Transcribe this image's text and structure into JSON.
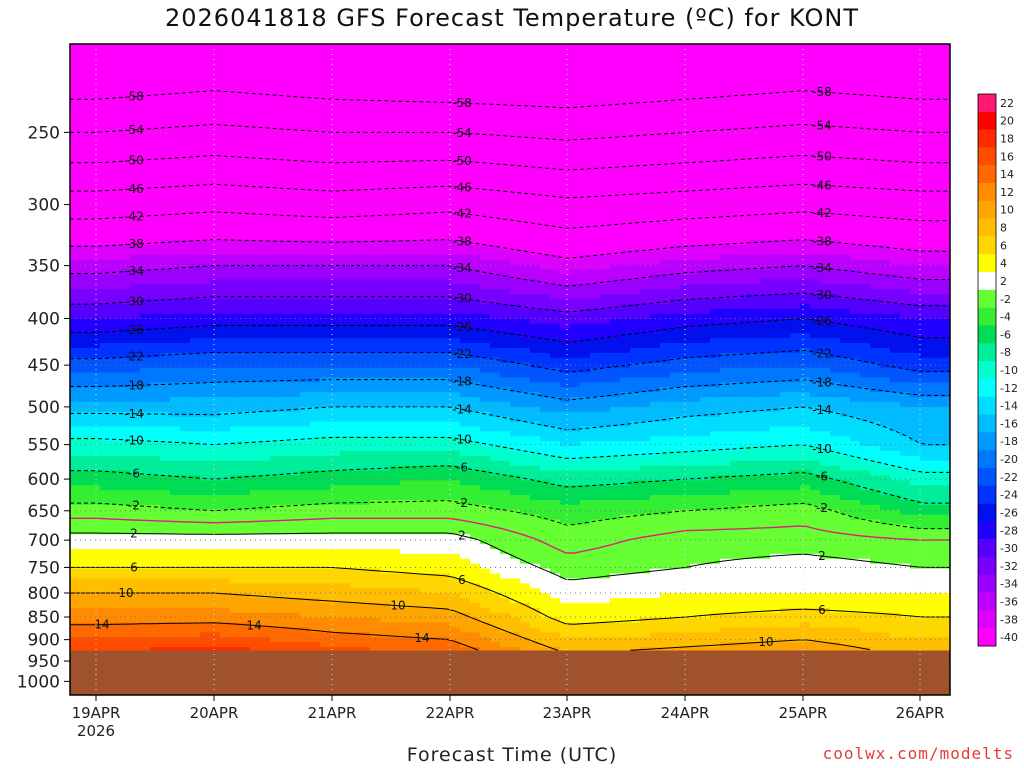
{
  "title": "2026041818 GFS Forecast Temperature (ºC) for KONT",
  "xlabel": "Forecast Time (UTC)",
  "credit": "coolwx.com/modelts",
  "chart_data": {
    "type": "heatmap",
    "title": "2026041818 GFS Forecast Temperature (ºC) for KONT",
    "xlabel": "Forecast Time (UTC)",
    "ylabel": "",
    "y_axis": {
      "ticks": [
        250,
        300,
        350,
        400,
        450,
        500,
        550,
        600,
        650,
        700,
        750,
        800,
        850,
        900,
        950,
        1000
      ],
      "ylim": [
        1000,
        200
      ],
      "scale": "log"
    },
    "x_axis": {
      "ticks": [
        "19APR",
        "20APR",
        "21APR",
        "22APR",
        "23APR",
        "24APR",
        "25APR",
        "26APR"
      ],
      "year_label": "2026"
    },
    "colorbar": {
      "levels": [
        22,
        20,
        18,
        16,
        14,
        12,
        10,
        8,
        6,
        4,
        2,
        -2,
        -4,
        -6,
        -8,
        -10,
        -12,
        -14,
        -16,
        -18,
        -20,
        -22,
        -24,
        -26,
        -28,
        -30,
        -32,
        -34,
        -36,
        -38,
        -40
      ],
      "colors": [
        "#ff1a75",
        "#ff0000",
        "#ff2a00",
        "#ff4d00",
        "#ff6a00",
        "#ff8c00",
        "#ffa500",
        "#ffbf00",
        "#ffd700",
        "#ffff00",
        "#ffffff",
        "#66ff33",
        "#33ee33",
        "#00dd55",
        "#00ee99",
        "#00ffcc",
        "#00ffff",
        "#00ddff",
        "#00bbff",
        "#0099ff",
        "#0077ff",
        "#0055ff",
        "#0033ff",
        "#0011ee",
        "#2200ff",
        "#5500ff",
        "#7700ff",
        "#9900ff",
        "#bb00ff",
        "#dd00ff",
        "#ff00ff"
      ]
    },
    "contour_labels": [
      "-58",
      "-54",
      "-50",
      "-46",
      "-42",
      "-38",
      "-34",
      "-30",
      "-26",
      "-22",
      "-18",
      "-14",
      "-10",
      "-6",
      "-2",
      "2",
      "6",
      "10",
      "14"
    ],
    "freezing_line_color": "#e0207a",
    "ground_fill_color": "#a0522d",
    "surface_pressure_hpa": 925,
    "series": [
      {
        "pressure": 250,
        "values": [
          -54,
          -53,
          -54,
          -54,
          -55,
          -54,
          -53,
          -54
        ]
      },
      {
        "pressure": 300,
        "values": [
          -44,
          -43,
          -44,
          -43,
          -45,
          -44,
          -43,
          -44
        ]
      },
      {
        "pressure": 350,
        "values": [
          -35,
          -34,
          -34,
          -34,
          -37,
          -35,
          -34,
          -36
        ]
      },
      {
        "pressure": 400,
        "values": [
          -28,
          -27,
          -27,
          -27,
          -29,
          -27,
          -26,
          -28
        ]
      },
      {
        "pressure": 450,
        "values": [
          -21,
          -20,
          -20,
          -20,
          -23,
          -21,
          -20,
          -23
        ]
      },
      {
        "pressure": 500,
        "values": [
          -15,
          -15,
          -14,
          -14,
          -17,
          -15,
          -14,
          -16
        ]
      },
      {
        "pressure": 550,
        "values": [
          -9,
          -10,
          -9,
          -9,
          -12,
          -11,
          -10,
          -14
        ]
      },
      {
        "pressure": 600,
        "values": [
          -5,
          -6,
          -5,
          -4,
          -7,
          -6,
          -5,
          -9
        ]
      },
      {
        "pressure": 650,
        "values": [
          -1,
          -2,
          -1,
          -1,
          -3,
          -2,
          -1,
          -5
        ]
      },
      {
        "pressure": 700,
        "values": [
          3,
          3,
          3,
          3,
          -1,
          1,
          1,
          0
        ]
      },
      {
        "pressure": 750,
        "values": [
          6,
          6,
          6,
          5,
          1,
          2,
          3,
          2
        ]
      },
      {
        "pressure": 800,
        "values": [
          10,
          10,
          9,
          8,
          3,
          4,
          4,
          4
        ]
      },
      {
        "pressure": 850,
        "values": [
          13,
          13,
          12,
          11,
          5,
          6,
          7,
          6
        ]
      },
      {
        "pressure": 900,
        "values": [
          16,
          17,
          15,
          14,
          8,
          9,
          10,
          8
        ]
      }
    ]
  },
  "axes": {
    "y_ticks": [
      "250",
      "300",
      "350",
      "400",
      "450",
      "500",
      "550",
      "600",
      "650",
      "700",
      "750",
      "800",
      "850",
      "900",
      "950",
      "1000"
    ],
    "x_ticks": [
      "19APR",
      "20APR",
      "21APR",
      "22APR",
      "23APR",
      "24APR",
      "25APR",
      "26APR"
    ],
    "x_year": "2026"
  },
  "colorbar_labels": [
    "22",
    "20",
    "18",
    "16",
    "14",
    "12",
    "10",
    "8",
    "6",
    "4",
    "2",
    "-2",
    "-4",
    "-6",
    "-8",
    "-10",
    "-12",
    "-14",
    "-16",
    "-18",
    "-20",
    "-22",
    "-24",
    "-26",
    "-28",
    "-30",
    "-32",
    "-34",
    "-36",
    "-38",
    "-40"
  ]
}
